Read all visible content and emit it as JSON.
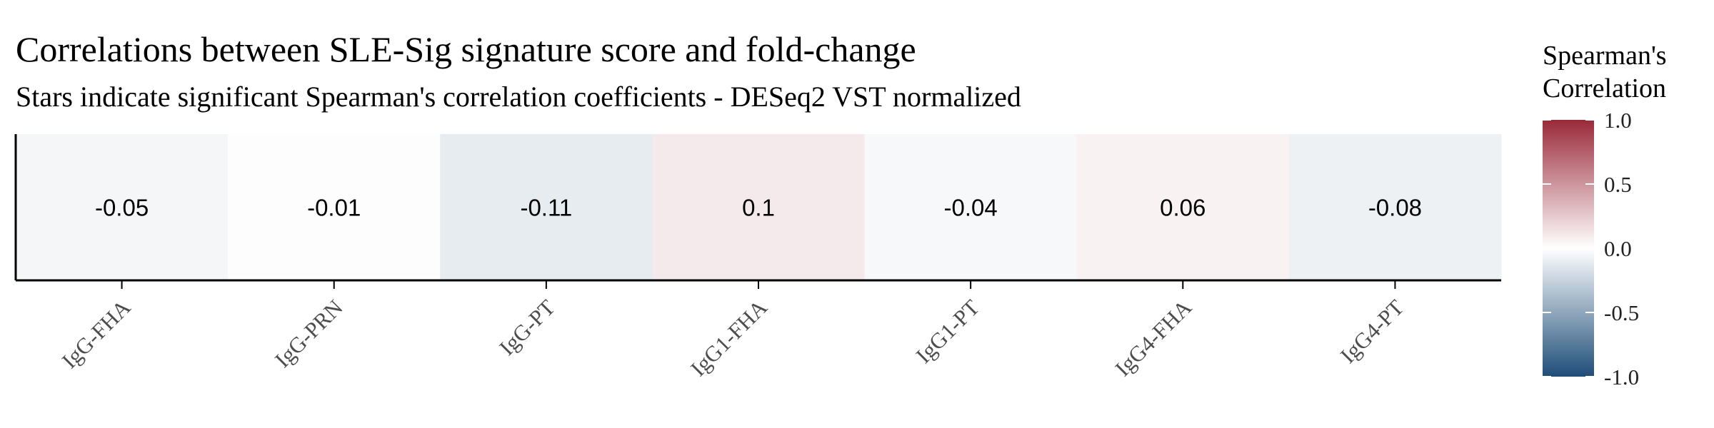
{
  "chart_data": {
    "type": "heatmap",
    "title": "Correlations between SLE-Sig signature score and fold-change",
    "subtitle": "Stars indicate significant Spearman's correlation coefficients - DESeq2 VST normalized",
    "categories": [
      "IgG-FHA",
      "IgG-PRN",
      "IgG-PT",
      "IgG1-FHA",
      "IgG1-PT",
      "IgG4-FHA",
      "IgG4-PT"
    ],
    "values": [
      -0.05,
      -0.01,
      -0.11,
      0.1,
      -0.04,
      0.06,
      -0.08
    ],
    "value_labels": [
      "-0.05",
      "-0.01",
      "-0.11",
      "0.1",
      "-0.04",
      "0.06",
      "-0.08"
    ],
    "xlabel": "",
    "ylabel": "",
    "legend": {
      "title_line1": "Spearman's",
      "title_line2": "Correlation",
      "range": [
        -1.0,
        1.0
      ],
      "ticks": [
        1.0,
        0.5,
        0.0,
        -0.5,
        -1.0
      ],
      "tick_labels": [
        "1.0",
        "0.5",
        "0.0",
        "-0.5",
        "-1.0"
      ],
      "placement": "right"
    },
    "colors": {
      "low": "#1f4e79",
      "mid": "#ffffff",
      "high": "#9a2a3a"
    },
    "grid": false
  }
}
